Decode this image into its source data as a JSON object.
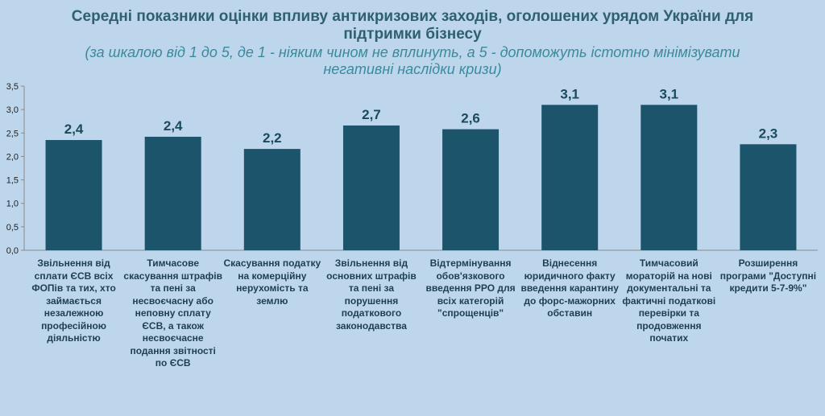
{
  "chart_data": {
    "type": "bar",
    "title": "Середні показники оцінки впливу  антикризових заходів, оголошених урядом України для підтримки бізнесу",
    "subtitle": "(за шкалою від 1 до 5, де 1 - ніяким чином не вплинуть, а 5 - допоможуть істотно мінімізувати негативні наслідки кризи)",
    "categories": [
      "Звільнення від сплати ЄСВ всіх ФОПів та тих, хто займається незалежною професійною діяльністю",
      "Тимчасове скасування штрафів та пені за несвоєчасну або неповну сплату ЄСВ, а також несвоєчасне подання звітності по ЄСВ",
      "Скасування податку на комерційну нерухомість та землю",
      "Звільнення від основних штрафів та пені за порушення податкового законодавства",
      "Відтермінування обов'язкового введення РРО для всіх категорій \"спрощенців\"",
      "Віднесення юридичного факту введення карантину до форс-мажорних обставин",
      "Тимчасовий мораторій на нові документальні та фактичні податкові перевірки та продовження початих",
      "Розширення програми \"Доступні кредити 5-7-9%\""
    ],
    "values": [
      2.35,
      2.42,
      2.16,
      2.66,
      2.58,
      3.1,
      3.1,
      2.26
    ],
    "data_labels": [
      "2,4",
      "2,4",
      "2,2",
      "2,7",
      "2,6",
      "3,1",
      "3,1",
      "2,3"
    ],
    "yticks": [
      "0,0",
      "0,5",
      "1,0",
      "1,5",
      "2,0",
      "2,5",
      "3,0",
      "3,5"
    ],
    "ylim": [
      0,
      3.5
    ],
    "grid": false,
    "colors": {
      "bar": "#1c546c",
      "background": "#bdd6ec",
      "title": "#2f6070",
      "subtitle": "#3b8a9c"
    }
  }
}
